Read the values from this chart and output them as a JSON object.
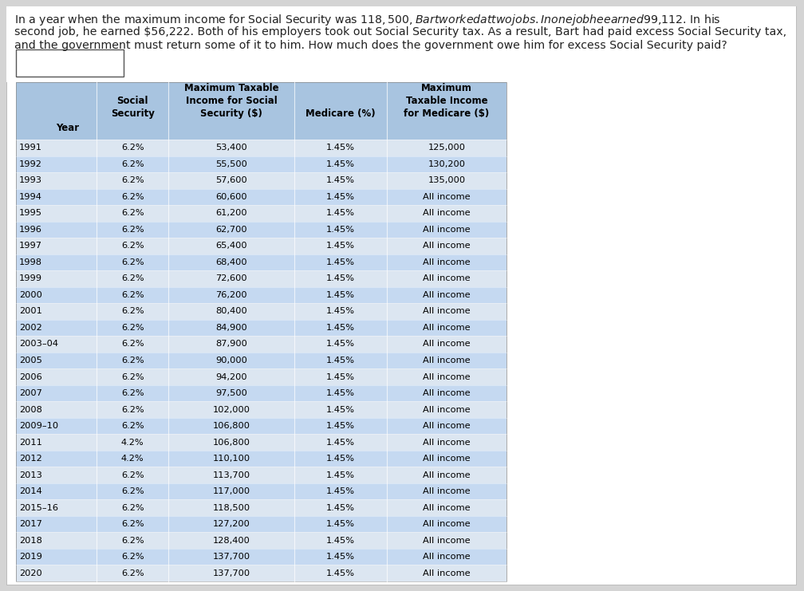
{
  "header_text_line1": "In a year when the maximum income for Social Security was $118,500, Bart worked at two jobs. In one job he earned $99,112. In his",
  "header_text_line2": "second job, he earned $56,222. Both of his employers took out Social Security tax. As a result, Bart had paid excess Social Security tax,",
  "header_text_line3": "and the government must return some of it to him. How much does the government owe him for excess Social Security paid?",
  "col_headers_line1": [
    "",
    "Social",
    "Maximum Taxable",
    "",
    "Maximum"
  ],
  "col_headers_line2": [
    "",
    "Security",
    "Income for Social",
    "Medicare (%)",
    "Taxable Income"
  ],
  "col_headers_line3": [
    "Year",
    "",
    "Security ($)",
    "",
    "for Medicare ($)"
  ],
  "rows": [
    [
      "1991",
      "6.2%",
      "53,400",
      "1.45%",
      "125,000"
    ],
    [
      "1992",
      "6.2%",
      "55,500",
      "1.45%",
      "130,200"
    ],
    [
      "1993",
      "6.2%",
      "57,600",
      "1.45%",
      "135,000"
    ],
    [
      "1994",
      "6.2%",
      "60,600",
      "1.45%",
      "All income"
    ],
    [
      "1995",
      "6.2%",
      "61,200",
      "1.45%",
      "All income"
    ],
    [
      "1996",
      "6.2%",
      "62,700",
      "1.45%",
      "All income"
    ],
    [
      "1997",
      "6.2%",
      "65,400",
      "1.45%",
      "All income"
    ],
    [
      "1998",
      "6.2%",
      "68,400",
      "1.45%",
      "All income"
    ],
    [
      "1999",
      "6.2%",
      "72,600",
      "1.45%",
      "All income"
    ],
    [
      "2000",
      "6.2%",
      "76,200",
      "1.45%",
      "All income"
    ],
    [
      "2001",
      "6.2%",
      "80,400",
      "1.45%",
      "All income"
    ],
    [
      "2002",
      "6.2%",
      "84,900",
      "1.45%",
      "All income"
    ],
    [
      "2003–04",
      "6.2%",
      "87,900",
      "1.45%",
      "All income"
    ],
    [
      "2005",
      "6.2%",
      "90,000",
      "1.45%",
      "All income"
    ],
    [
      "2006",
      "6.2%",
      "94,200",
      "1.45%",
      "All income"
    ],
    [
      "2007",
      "6.2%",
      "97,500",
      "1.45%",
      "All income"
    ],
    [
      "2008",
      "6.2%",
      "102,000",
      "1.45%",
      "All income"
    ],
    [
      "2009–10",
      "6.2%",
      "106,800",
      "1.45%",
      "All income"
    ],
    [
      "2011",
      "4.2%",
      "106,800",
      "1.45%",
      "All income"
    ],
    [
      "2012",
      "4.2%",
      "110,100",
      "1.45%",
      "All income"
    ],
    [
      "2013",
      "6.2%",
      "113,700",
      "1.45%",
      "All income"
    ],
    [
      "2014",
      "6.2%",
      "117,000",
      "1.45%",
      "All income"
    ],
    [
      "2015–16",
      "6.2%",
      "118,500",
      "1.45%",
      "All income"
    ],
    [
      "2017",
      "6.2%",
      "127,200",
      "1.45%",
      "All income"
    ],
    [
      "2018",
      "6.2%",
      "128,400",
      "1.45%",
      "All income"
    ],
    [
      "2019",
      "6.2%",
      "137,700",
      "1.45%",
      "All income"
    ],
    [
      "2020",
      "6.2%",
      "137,700",
      "1.45%",
      "All income"
    ]
  ],
  "row_even_color": "#dce6f1",
  "row_odd_color": "#c5d9f1",
  "header_row_color": "#a8c4e0",
  "cell_text_color": "#000000",
  "background_color": "#c8c8c8",
  "page_bg": "#d4d4d4",
  "white": "#ffffff",
  "dark_text": "#222222"
}
